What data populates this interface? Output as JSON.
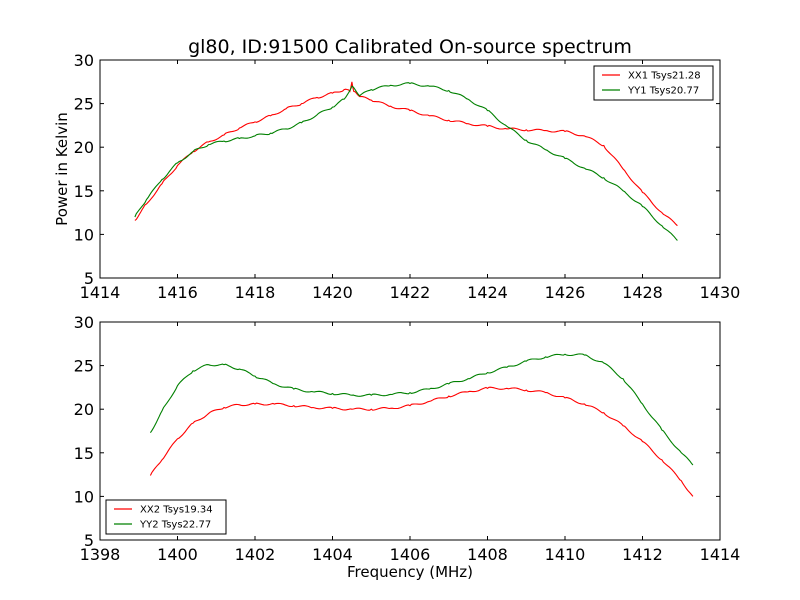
{
  "colors": {
    "red": "#ff0000",
    "green": "#008000"
  },
  "chart_data": [
    {
      "type": "line",
      "title": "gl80, ID:91500 Calibrated On-source spectrum",
      "xlabel": "",
      "ylabel": "Power in Kelvin",
      "xlim": [
        1414,
        1430
      ],
      "ylim": [
        5,
        30
      ],
      "xticks": [
        "1414",
        "1416",
        "1418",
        "1420",
        "1422",
        "1424",
        "1426",
        "1428",
        "1430"
      ],
      "yticks": [
        "5",
        "10",
        "15",
        "20",
        "25",
        "30"
      ],
      "legend_position": "top-right",
      "grid": false,
      "series": [
        {
          "name": "XX1 Tsys21.28",
          "color": "red",
          "x": [
            1414.9,
            1415.2,
            1415.6,
            1416.0,
            1416.4,
            1416.8,
            1417.2,
            1417.6,
            1418.0,
            1418.4,
            1418.8,
            1419.2,
            1419.6,
            1420.0,
            1420.3,
            1420.45,
            1420.5,
            1420.55,
            1420.7,
            1421.0,
            1421.5,
            1422.0,
            1422.5,
            1423.0,
            1423.5,
            1424.0,
            1424.5,
            1425.0,
            1425.5,
            1426.0,
            1426.5,
            1427.0,
            1427.5,
            1428.0,
            1428.5,
            1428.9
          ],
          "y": [
            11.6,
            13.5,
            15.8,
            17.9,
            19.5,
            20.6,
            21.4,
            22.2,
            22.9,
            23.6,
            24.4,
            25.0,
            25.7,
            26.2,
            26.6,
            26.4,
            27.5,
            26.4,
            25.8,
            25.4,
            24.7,
            24.2,
            23.6,
            23.1,
            22.7,
            22.4,
            22.1,
            22.0,
            21.9,
            21.8,
            21.3,
            20.2,
            17.5,
            14.8,
            12.5,
            11.0
          ]
        },
        {
          "name": "YY1 Tsys20.77",
          "color": "green",
          "x": [
            1414.9,
            1415.2,
            1415.6,
            1416.0,
            1416.4,
            1416.8,
            1417.2,
            1417.6,
            1418.0,
            1418.4,
            1418.8,
            1419.2,
            1419.6,
            1420.0,
            1420.3,
            1420.5,
            1420.7,
            1421.0,
            1421.5,
            1422.0,
            1422.5,
            1423.0,
            1423.5,
            1424.0,
            1424.5,
            1425.0,
            1425.5,
            1426.0,
            1426.5,
            1427.0,
            1427.5,
            1428.0,
            1428.5,
            1428.9
          ],
          "y": [
            12.0,
            14.0,
            16.3,
            18.2,
            19.5,
            20.3,
            20.7,
            21.0,
            21.3,
            21.6,
            22.1,
            22.8,
            23.7,
            24.6,
            25.5,
            27.0,
            25.9,
            26.6,
            27.1,
            27.3,
            27.0,
            26.5,
            25.5,
            24.2,
            22.4,
            20.8,
            19.7,
            18.7,
            17.6,
            16.5,
            15.0,
            13.2,
            11.0,
            9.3
          ]
        }
      ]
    },
    {
      "type": "line",
      "title": "",
      "xlabel": "Frequency (MHz)",
      "ylabel": "",
      "xlim": [
        1398,
        1414
      ],
      "ylim": [
        5,
        30
      ],
      "xticks": [
        "1398",
        "1400",
        "1402",
        "1404",
        "1406",
        "1408",
        "1410",
        "1412",
        "1414"
      ],
      "yticks": [
        "5",
        "10",
        "15",
        "20",
        "25",
        "30"
      ],
      "legend_position": "bottom-left",
      "grid": false,
      "series": [
        {
          "name": "XX2 Tsys19.34",
          "color": "red",
          "x": [
            1399.3,
            1399.6,
            1400.0,
            1400.4,
            1400.8,
            1401.2,
            1401.6,
            1402.0,
            1402.5,
            1403.0,
            1403.5,
            1404.0,
            1404.5,
            1405.0,
            1405.5,
            1406.0,
            1406.5,
            1407.0,
            1407.5,
            1408.0,
            1408.5,
            1409.0,
            1409.5,
            1410.0,
            1410.5,
            1411.0,
            1411.5,
            1412.0,
            1412.5,
            1413.0,
            1413.3
          ],
          "y": [
            12.4,
            14.2,
            16.6,
            18.4,
            19.5,
            20.2,
            20.5,
            20.6,
            20.6,
            20.4,
            20.2,
            20.1,
            20.0,
            20.0,
            20.1,
            20.4,
            20.9,
            21.5,
            22.0,
            22.4,
            22.4,
            22.2,
            21.9,
            21.3,
            20.6,
            19.6,
            18.1,
            16.3,
            14.2,
            11.8,
            10.0
          ]
        },
        {
          "name": "YY2 Tsys22.77",
          "color": "green",
          "x": [
            1399.3,
            1399.6,
            1400.0,
            1400.4,
            1400.8,
            1401.2,
            1401.6,
            1402.0,
            1402.5,
            1403.0,
            1403.5,
            1404.0,
            1404.5,
            1405.0,
            1405.5,
            1406.0,
            1406.5,
            1407.0,
            1407.5,
            1408.0,
            1408.5,
            1409.0,
            1409.5,
            1410.0,
            1410.5,
            1411.0,
            1411.5,
            1412.0,
            1412.5,
            1413.0,
            1413.3
          ],
          "y": [
            17.3,
            19.8,
            22.7,
            24.4,
            25.1,
            25.1,
            24.6,
            23.8,
            22.9,
            22.3,
            22.0,
            21.8,
            21.6,
            21.6,
            21.7,
            21.9,
            22.3,
            22.9,
            23.5,
            24.2,
            24.8,
            25.5,
            26.0,
            26.3,
            26.2,
            25.3,
            23.5,
            20.6,
            17.6,
            15.0,
            13.6
          ]
        }
      ]
    }
  ]
}
